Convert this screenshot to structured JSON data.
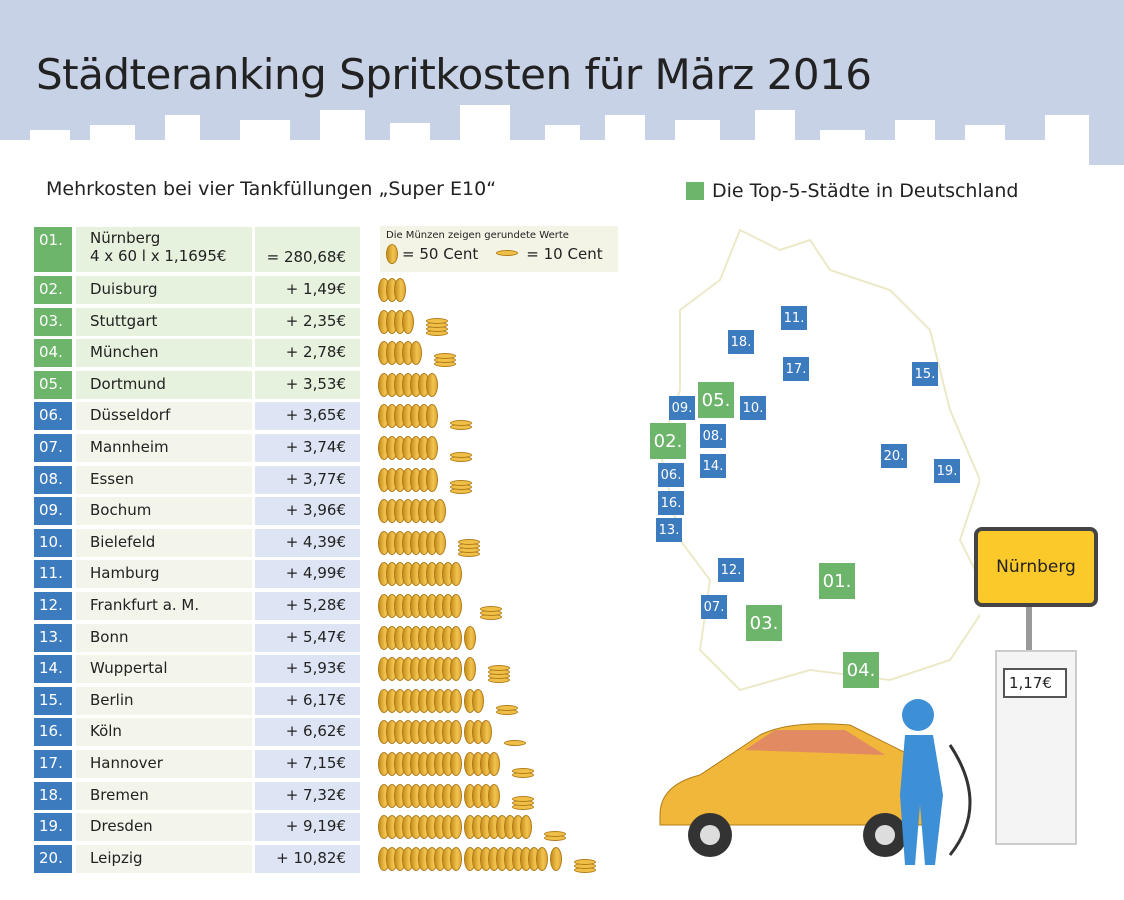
{
  "title": "Städteranking Spritkosten für März 2016",
  "subtitle": "Mehrkosten bei vier Tankfüllungen „Super E10“",
  "legend": {
    "top5": "Die Top-5-Städte in Deutschland",
    "coins_note": "Die Münzen zeigen gerundete Werte",
    "big_coin": "= 50 Cent",
    "small_coin": "= 10 Cent"
  },
  "colors": {
    "top5": "#6db56a",
    "others": "#3d7bbf",
    "sky": "#c8d2e6",
    "sign": "#fcc92a"
  },
  "first": {
    "rank": "01.",
    "city": "Nürnberg",
    "formula": "4 x 60 l x 1,1695€",
    "value": "= 280,68€"
  },
  "rows": [
    {
      "rank": "02.",
      "city": "Duisburg",
      "value": "+ 1,49€",
      "amount": 1.49
    },
    {
      "rank": "03.",
      "city": "Stuttgart",
      "value": "+ 2,35€",
      "amount": 2.35
    },
    {
      "rank": "04.",
      "city": "München",
      "value": "+ 2,78€",
      "amount": 2.78
    },
    {
      "rank": "05.",
      "city": "Dortmund",
      "value": "+ 3,53€",
      "amount": 3.53
    },
    {
      "rank": "06.",
      "city": "Düsseldorf",
      "value": "+ 3,65€",
      "amount": 3.65
    },
    {
      "rank": "07.",
      "city": "Mannheim",
      "value": "+ 3,74€",
      "amount": 3.74
    },
    {
      "rank": "08.",
      "city": "Essen",
      "value": "+ 3,77€",
      "amount": 3.77
    },
    {
      "rank": "09.",
      "city": "Bochum",
      "value": "+ 3,96€",
      "amount": 3.96
    },
    {
      "rank": "10.",
      "city": "Bielefeld",
      "value": "+ 4,39€",
      "amount": 4.39
    },
    {
      "rank": "11.",
      "city": "Hamburg",
      "value": "+ 4,99€",
      "amount": 4.99
    },
    {
      "rank": "12.",
      "city": "Frankfurt a. M.",
      "value": "+ 5,28€",
      "amount": 5.28
    },
    {
      "rank": "13.",
      "city": "Bonn",
      "value": "+ 5,47€",
      "amount": 5.47
    },
    {
      "rank": "14.",
      "city": "Wuppertal",
      "value": "+ 5,93€",
      "amount": 5.93
    },
    {
      "rank": "15.",
      "city": "Berlin",
      "value": "+ 6,17€",
      "amount": 6.17
    },
    {
      "rank": "16.",
      "city": "Köln",
      "value": "+ 6,62€",
      "amount": 6.62
    },
    {
      "rank": "17.",
      "city": "Hannover",
      "value": "+ 7,15€",
      "amount": 7.15
    },
    {
      "rank": "18.",
      "city": "Bremen",
      "value": "+ 7,32€",
      "amount": 7.32
    },
    {
      "rank": "19.",
      "city": "Dresden",
      "value": "+ 9,19€",
      "amount": 9.19
    },
    {
      "rank": "20.",
      "city": "Leipzig",
      "value": "+ 10,82€",
      "amount": 10.82
    }
  ],
  "sign": "Nürnberg",
  "pump_price": "1,17€"
}
